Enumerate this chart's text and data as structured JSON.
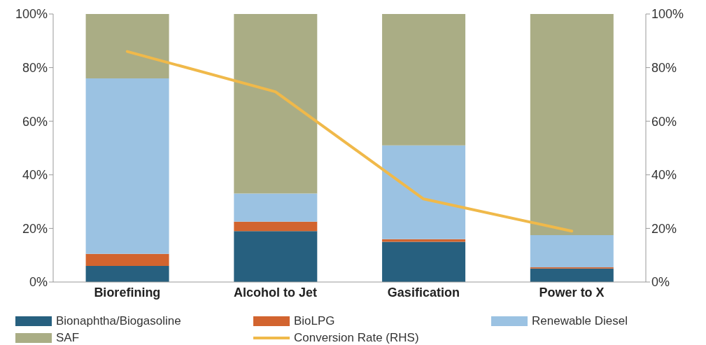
{
  "chart_data": {
    "type": "bar",
    "stacked": true,
    "categories": [
      "Biorefining",
      "Alcohol to Jet",
      "Gasification",
      "Power to X"
    ],
    "series": [
      {
        "name": "Bionaphtha/Biogasoline",
        "color": "#27607f",
        "values": [
          6,
          19,
          15,
          5
        ]
      },
      {
        "name": "BioLPG",
        "color": "#d2642f",
        "values": [
          4.5,
          3.5,
          1,
          0.5
        ]
      },
      {
        "name": "Renewable Diesel",
        "color": "#9bc2e2",
        "values": [
          65.5,
          10.5,
          35,
          12
        ]
      },
      {
        "name": "SAF",
        "color": "#aaad85",
        "values": [
          24,
          67,
          49,
          82.5
        ]
      },
      {
        "name": "Conversion Rate (RHS)",
        "type": "line",
        "axis": "y2",
        "color": "#f0b94a",
        "values": [
          86,
          71,
          31,
          19
        ]
      }
    ],
    "ylim": [
      0,
      100
    ],
    "yticks": [
      {
        "value": 0,
        "label": "0%"
      },
      {
        "value": 20,
        "label": "20%"
      },
      {
        "value": 40,
        "label": "40%"
      },
      {
        "value": 60,
        "label": "60%"
      },
      {
        "value": 80,
        "label": "80%"
      },
      {
        "value": 100,
        "label": "100%"
      }
    ],
    "y2lim": [
      0,
      100
    ],
    "y2ticks": [
      {
        "value": 0,
        "label": "0%"
      },
      {
        "value": 20,
        "label": "20%"
      },
      {
        "value": 40,
        "label": "40%"
      },
      {
        "value": 60,
        "label": "60%"
      },
      {
        "value": 80,
        "label": "80%"
      },
      {
        "value": 100,
        "label": "100%"
      }
    ],
    "grid": false,
    "legend": "bottom",
    "marker": "none",
    "line_style": "solid"
  }
}
